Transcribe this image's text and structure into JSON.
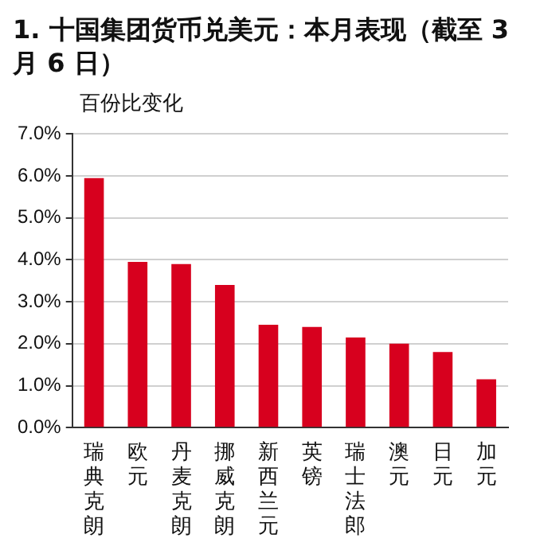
{
  "chart_data": {
    "type": "bar",
    "title": "1. 十国集团货币兑美元：本月表现（截至 3 月 6 日）",
    "ylabel": "百份比变化",
    "categories": [
      "瑞典克朗",
      "欧元",
      "丹麦克朗",
      "挪威克朗",
      "新西兰元",
      "英镑",
      "瑞士法郎",
      "澳元",
      "日元",
      "加元"
    ],
    "values": [
      5.95,
      3.95,
      3.9,
      3.4,
      2.45,
      2.4,
      2.15,
      2.0,
      1.8,
      1.15
    ],
    "color": "#d7001e",
    "ylim": [
      0,
      7
    ],
    "yticks": [
      {
        "value": 0,
        "label": "0.0%"
      },
      {
        "value": 1,
        "label": "1.0%"
      },
      {
        "value": 2,
        "label": "2.0%"
      },
      {
        "value": 3,
        "label": "3.0%"
      },
      {
        "value": 4,
        "label": "4.0%"
      },
      {
        "value": 5,
        "label": "5.0%"
      },
      {
        "value": 6,
        "label": "6.0%"
      },
      {
        "value": 7,
        "label": "7.0%"
      }
    ],
    "grid": "y"
  }
}
